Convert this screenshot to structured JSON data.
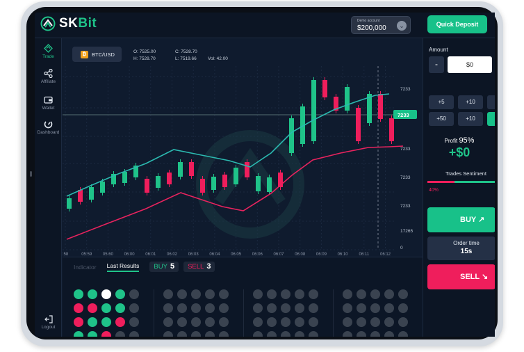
{
  "header": {
    "brand_first": "SK",
    "brand_second": "Bit",
    "demo_label": "Demo account",
    "demo_value": "$200,000",
    "quick_deposit": "Quick Deposit"
  },
  "nav": {
    "items": [
      {
        "label": "Trade"
      },
      {
        "label": "Affiliate"
      },
      {
        "label": "Wallet"
      },
      {
        "label": "Dashboard"
      }
    ],
    "logout": "Logout"
  },
  "chart": {
    "pair": "BTC/USD",
    "pair_icon": "₿",
    "open": "O: 7525.00",
    "close": "C: 7528.70",
    "high": "H: 7528.70",
    "low": "L: 7519.66",
    "vol": "Vol: 42.00",
    "price_labels": [
      "7233",
      "7233",
      "7233",
      "7233",
      "7233",
      "17265",
      "0"
    ],
    "current_price": "7233",
    "time_labels": [
      ":58",
      "05:59",
      "05:60",
      "06:00",
      "06:01",
      "06:02",
      "06:03",
      "06:04",
      "06:05",
      "06:06",
      "06:07",
      "06:08",
      "06:09",
      "06:10",
      "06:11",
      "06:12"
    ],
    "colors": {
      "up": "#1fc389",
      "down": "#ef1e5c",
      "ma_fast": "#2bb9b0",
      "ma_slow": "#e8235e"
    }
  },
  "bottom": {
    "tab_indicator": "Indicator",
    "tab_results": "Last Results",
    "buy_label": "BUY",
    "buy_count": "5",
    "sell_label": "SELL",
    "sell_count": "3",
    "results_grid": [
      [
        "g",
        "g",
        "w",
        "g",
        "x"
      ],
      [
        "r",
        "r",
        "g",
        "g",
        "x"
      ],
      [
        "r",
        "g",
        "g",
        "r",
        "x"
      ],
      [
        "g",
        "g",
        "r",
        "x",
        "x"
      ]
    ]
  },
  "panel": {
    "amount_label": "Amount",
    "minus": "-",
    "amount_value": "$0",
    "quick_amounts": [
      "+5",
      "+10",
      "+",
      "+50",
      "+10",
      ""
    ],
    "profit_label": "Profit",
    "profit_pct": "95%",
    "profit_value": "+$0",
    "sentiment_label": "Trades Sentiment",
    "sentiment_sell_pct": "40%",
    "sentiment_sell_fraction": 0.4,
    "buy": "BUY",
    "order_time_label": "Order time",
    "order_time_value": "15s",
    "sell": "SELL"
  }
}
